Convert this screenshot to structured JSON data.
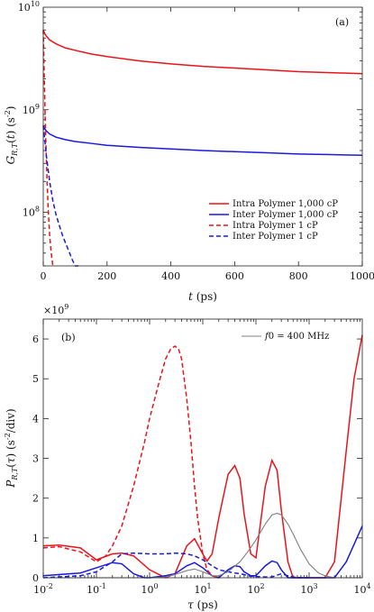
{
  "chart_data": [
    {
      "type": "line",
      "panel_label": "(a)",
      "ylabel": "G_{R,T}(t) (s^{-2})",
      "xlabel": "t (ps)",
      "xlim": [
        0,
        1000
      ],
      "ylim": [
        30000000,
        10000000000
      ],
      "yscale": "log",
      "x_ticks": [
        "0",
        "200",
        "400",
        "600",
        "800",
        "1000"
      ],
      "y_ticks": [
        {
          "base": "10",
          "exp": "8"
        },
        {
          "base": "10",
          "exp": "9"
        },
        {
          "base": "10",
          "exp": "10"
        }
      ],
      "legend_position": "bottom-right",
      "series": [
        {
          "name": "Intra Polymer 1,000 cP",
          "color": "#e8141c",
          "dash": "solid",
          "x": [
            0,
            5,
            10,
            20,
            40,
            70,
            100,
            150,
            200,
            300,
            400,
            500,
            600,
            700,
            800,
            900,
            1000
          ],
          "y": [
            6000000000,
            5500000000,
            5200000000,
            4800000000,
            4400000000,
            4000000000,
            3800000000,
            3500000000,
            3300000000,
            3000000000,
            2800000000,
            2650000000,
            2550000000,
            2450000000,
            2350000000,
            2300000000,
            2250000000
          ]
        },
        {
          "name": "Inter Polymer 1,000 cP",
          "color": "#1a1adc",
          "dash": "solid",
          "x": [
            0,
            5,
            10,
            20,
            40,
            70,
            100,
            150,
            200,
            300,
            400,
            500,
            600,
            700,
            800,
            900,
            1000
          ],
          "y": [
            700000000,
            650000000,
            620000000,
            580000000,
            540000000,
            510000000,
            490000000,
            470000000,
            450000000,
            430000000,
            415000000,
            400000000,
            390000000,
            380000000,
            370000000,
            365000000,
            360000000
          ]
        },
        {
          "name": "Intra Polymer 1 cP",
          "color": "#e8141c",
          "dash": "dashed",
          "x": [
            0,
            2,
            5,
            8,
            12,
            16,
            20,
            25,
            30,
            35
          ],
          "y": [
            6000000000,
            3000000000,
            1200000000,
            500000000,
            200000000,
            100000000,
            60000000,
            40000000,
            30000000,
            25000000
          ]
        },
        {
          "name": "Inter Polymer 1 cP",
          "color": "#1a1adc",
          "dash": "dashed",
          "x": [
            0,
            5,
            10,
            20,
            30,
            40,
            50,
            60,
            70,
            80,
            90,
            100,
            110
          ],
          "y": [
            700000000,
            500000000,
            350000000,
            200000000,
            130000000,
            95000000,
            75000000,
            60000000,
            50000000,
            42000000,
            35000000,
            30000000,
            27000000
          ]
        }
      ]
    },
    {
      "type": "line",
      "panel_label": "(b)",
      "ylabel": "P_{R,T}(τ) (s^{-2}/div)",
      "xlabel": "τ (ps)",
      "xscale": "log",
      "xlim": [
        0.01,
        10000
      ],
      "ylim": [
        0,
        6.5
      ],
      "y_multiplier": {
        "base": "×10",
        "exp": "9"
      },
      "x_ticks": [
        {
          "base": "10",
          "exp": "-2"
        },
        {
          "base": "10",
          "exp": "-1"
        },
        {
          "base": "10",
          "exp": "0"
        },
        {
          "base": "10",
          "exp": "1"
        },
        {
          "base": "10",
          "exp": "2"
        },
        {
          "base": "10",
          "exp": "3"
        },
        {
          "base": "10",
          "exp": "4"
        }
      ],
      "y_ticks": [
        "0",
        "1",
        "2",
        "3",
        "4",
        "5",
        "6"
      ],
      "legend_position": "top-right",
      "legend": [
        {
          "label": "f_0 = 400 MHz",
          "color": "#808080"
        }
      ],
      "series": [
        {
          "color": "#e8141c",
          "dash": "solid",
          "x": [
            0.01,
            0.02,
            0.05,
            0.1,
            0.2,
            0.3,
            0.5,
            1,
            2,
            3,
            5,
            7,
            10,
            12,
            15,
            20,
            30,
            40,
            50,
            60,
            80,
            100,
            150,
            200,
            250,
            300,
            400,
            500,
            700,
            1000,
            1500,
            2000,
            3000,
            5000,
            7000,
            10000
          ],
          "y": [
            0.8,
            0.82,
            0.75,
            0.45,
            0.6,
            0.62,
            0.55,
            0.2,
            0.0,
            0.1,
            0.8,
            0.98,
            0.6,
            0.42,
            0.6,
            1.5,
            2.6,
            2.82,
            2.5,
            1.6,
            0.6,
            0.5,
            2.3,
            2.95,
            2.7,
            1.7,
            0.4,
            0.0,
            0.0,
            0.0,
            0.0,
            0.0,
            0.4,
            3.2,
            5.0,
            6.1
          ]
        },
        {
          "color": "#1a1adc",
          "dash": "solid",
          "x": [
            0.01,
            0.05,
            0.1,
            0.2,
            0.3,
            0.5,
            0.8,
            1,
            2,
            3,
            5,
            7,
            10,
            15,
            20,
            30,
            40,
            50,
            60,
            80,
            100,
            150,
            200,
            250,
            300,
            400,
            500,
            700,
            1000,
            2000,
            3000,
            5000,
            10000
          ],
          "y": [
            0.05,
            0.12,
            0.25,
            0.38,
            0.35,
            0.1,
            0.0,
            0.0,
            0.05,
            0.1,
            0.3,
            0.38,
            0.25,
            0.05,
            0.0,
            0.2,
            0.3,
            0.28,
            0.15,
            0.05,
            0.05,
            0.3,
            0.42,
            0.38,
            0.2,
            0.0,
            0.0,
            0.0,
            0.0,
            0.0,
            0.0,
            0.4,
            1.3
          ]
        },
        {
          "color": "#e8141c",
          "dash": "dashed",
          "x": [
            0.01,
            0.02,
            0.05,
            0.1,
            0.15,
            0.2,
            0.3,
            0.5,
            0.8,
            1,
            1.5,
            2,
            2.5,
            3,
            3.5,
            4,
            5,
            6,
            7,
            8,
            10,
            12,
            15,
            20
          ],
          "y": [
            0.75,
            0.78,
            0.65,
            0.4,
            0.55,
            0.8,
            1.3,
            2.3,
            3.4,
            4.0,
            4.9,
            5.5,
            5.75,
            5.82,
            5.75,
            5.5,
            4.5,
            3.4,
            2.3,
            1.5,
            0.6,
            0.2,
            0.05,
            0.0
          ]
        },
        {
          "color": "#1a1adc",
          "dash": "dashed",
          "x": [
            0.01,
            0.05,
            0.1,
            0.2,
            0.3,
            0.5,
            1,
            2,
            3,
            5,
            7,
            10,
            15,
            20,
            30,
            40,
            50,
            60,
            70,
            100,
            150,
            200,
            300,
            400,
            500,
            700,
            1000
          ],
          "y": [
            0.0,
            0.05,
            0.15,
            0.4,
            0.6,
            0.62,
            0.6,
            0.6,
            0.62,
            0.6,
            0.55,
            0.45,
            0.3,
            0.2,
            0.15,
            0.12,
            0.1,
            0.08,
            0.05,
            0.03,
            0.02,
            0.02,
            0.1,
            0.05,
            0.02,
            0.0,
            0.0
          ]
        },
        {
          "name": "f_0 = 400 MHz",
          "color": "#808080",
          "dash": "solid",
          "x": [
            0.01,
            0.1,
            1,
            2,
            3,
            5,
            7,
            10,
            15,
            20,
            30,
            50,
            70,
            100,
            150,
            200,
            250,
            300,
            400,
            500,
            700,
            1000,
            1500,
            2000,
            3000,
            5000,
            10000
          ],
          "y": [
            0.0,
            0.0,
            0.0,
            0.02,
            0.08,
            0.18,
            0.22,
            0.15,
            0.05,
            0.05,
            0.15,
            0.4,
            0.65,
            0.95,
            1.35,
            1.58,
            1.62,
            1.58,
            1.35,
            1.1,
            0.7,
            0.35,
            0.12,
            0.05,
            0.0,
            0.0,
            0.0
          ]
        }
      ]
    }
  ]
}
